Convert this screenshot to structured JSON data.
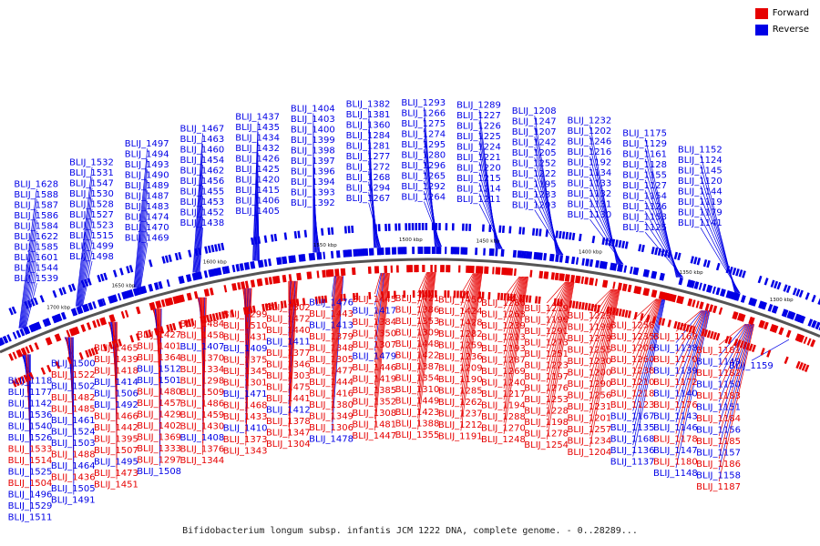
{
  "legend": {
    "forward_label": "Forward",
    "reverse_label": "Reverse",
    "forward_color": "#e60000",
    "reverse_color": "#0000e6"
  },
  "caption": "Bifidobacterium longum subsp. infantis JCM 1222 DNA, complete genome. - 0..28289...",
  "ticks": [
    "1700 kbp",
    "1650 kbp",
    "1600 kbp",
    "1550 kbp",
    "1500 kbp",
    "1450 kbp",
    "1400 kbp",
    "1350 kbp",
    "1300 kbp"
  ],
  "labels": [
    {
      "t": "BLIJ_1628",
      "s": "r"
    },
    {
      "t": "BLIJ_1588",
      "s": "r"
    },
    {
      "t": "BLIJ_1587",
      "s": "r"
    },
    {
      "t": "BLIJ_1586",
      "s": "r"
    },
    {
      "t": "BLIJ_1584",
      "s": "r"
    },
    {
      "t": "BLIJ_1622",
      "s": "r"
    },
    {
      "t": "BLIJ_1585",
      "s": "r"
    },
    {
      "t": "BLIJ_1601",
      "s": "r"
    },
    {
      "t": "BLIJ_1544",
      "s": "r"
    },
    {
      "t": "BLIJ_1539",
      "s": "r"
    },
    {
      "t": "BLIJ_1532",
      "s": "r"
    },
    {
      "t": "BLIJ_1531",
      "s": "r"
    },
    {
      "t": "BLIJ_1547",
      "s": "r"
    },
    {
      "t": "BLIJ_1530",
      "s": "r"
    },
    {
      "t": "BLIJ_1528",
      "s": "r"
    },
    {
      "t": "BLIJ_1527",
      "s": "r"
    },
    {
      "t": "BLIJ_1523",
      "s": "r"
    },
    {
      "t": "BLIJ_1515",
      "s": "r"
    },
    {
      "t": "BLIJ_1499",
      "s": "r"
    },
    {
      "t": "BLIJ_1498",
      "s": "r"
    },
    {
      "t": "BLIJ_1497",
      "s": "r"
    },
    {
      "t": "BLIJ_1494",
      "s": "r"
    },
    {
      "t": "BLIJ_1493",
      "s": "r"
    },
    {
      "t": "BLIJ_1490",
      "s": "r"
    },
    {
      "t": "BLIJ_1489",
      "s": "r"
    },
    {
      "t": "BLIJ_1487",
      "s": "r"
    },
    {
      "t": "BLIJ_1483",
      "s": "r"
    },
    {
      "t": "BLIJ_1474",
      "s": "r"
    },
    {
      "t": "BLIJ_1470",
      "s": "r"
    },
    {
      "t": "BLIJ_1469",
      "s": "r"
    },
    {
      "t": "BLIJ_1467",
      "s": "r"
    },
    {
      "t": "BLIJ_1463",
      "s": "r"
    },
    {
      "t": "BLIJ_1460",
      "s": "r"
    },
    {
      "t": "BLIJ_1454",
      "s": "r"
    },
    {
      "t": "BLIJ_1462",
      "s": "r"
    },
    {
      "t": "BLIJ_1456",
      "s": "r"
    },
    {
      "t": "BLIJ_1455",
      "s": "r"
    },
    {
      "t": "BLIJ_1453",
      "s": "r"
    },
    {
      "t": "BLIJ_1452",
      "s": "r"
    },
    {
      "t": "BLIJ_1438",
      "s": "r"
    },
    {
      "t": "BLIJ_1437",
      "s": "r"
    },
    {
      "t": "BLIJ_1435",
      "s": "r"
    },
    {
      "t": "BLIJ_1434",
      "s": "r"
    },
    {
      "t": "BLIJ_1432",
      "s": "r"
    },
    {
      "t": "BLIJ_1426",
      "s": "r"
    },
    {
      "t": "BLIJ_1425",
      "s": "r"
    },
    {
      "t": "BLIJ_1420",
      "s": "r"
    },
    {
      "t": "BLIJ_1415",
      "s": "r"
    },
    {
      "t": "BLIJ_1406",
      "s": "r"
    },
    {
      "t": "BLIJ_1405",
      "s": "r"
    },
    {
      "t": "BLIJ_1404",
      "s": "r"
    },
    {
      "t": "BLIJ_1403",
      "s": "r"
    },
    {
      "t": "BLIJ_1400",
      "s": "r"
    },
    {
      "t": "BLIJ_1399",
      "s": "r"
    },
    {
      "t": "BLIJ_1398",
      "s": "r"
    },
    {
      "t": "BLIJ_1397",
      "s": "r"
    },
    {
      "t": "BLIJ_1396",
      "s": "r"
    },
    {
      "t": "BLIJ_1394",
      "s": "r"
    },
    {
      "t": "BLIJ_1393",
      "s": "r"
    },
    {
      "t": "BLIJ_1392",
      "s": "r"
    },
    {
      "t": "BLIJ_1382",
      "s": "r"
    },
    {
      "t": "BLIJ_1381",
      "s": "r"
    },
    {
      "t": "BLIJ_1360",
      "s": "r"
    },
    {
      "t": "BLIJ_1284",
      "s": "r"
    },
    {
      "t": "BLIJ_1281",
      "s": "r"
    },
    {
      "t": "BLIJ_1277",
      "s": "r"
    },
    {
      "t": "BLIJ_1272",
      "s": "r"
    },
    {
      "t": "BLIJ_1268",
      "s": "r"
    },
    {
      "t": "BLIJ_1294",
      "s": "r"
    },
    {
      "t": "BLIJ_1267",
      "s": "r"
    },
    {
      "t": "BLIJ_1293",
      "s": "r"
    },
    {
      "t": "BLIJ_1266",
      "s": "r"
    },
    {
      "t": "BLIJ_1275",
      "s": "r"
    },
    {
      "t": "BLIJ_1274",
      "s": "r"
    },
    {
      "t": "BLIJ_1295",
      "s": "r"
    },
    {
      "t": "BLIJ_1280",
      "s": "r"
    },
    {
      "t": "BLIJ_1296",
      "s": "r"
    },
    {
      "t": "BLIJ_1265",
      "s": "r"
    },
    {
      "t": "BLIJ_1292",
      "s": "r"
    },
    {
      "t": "BLIJ_1264",
      "s": "r"
    },
    {
      "t": "BLIJ_1289",
      "s": "r"
    },
    {
      "t": "BLIJ_1227",
      "s": "r"
    },
    {
      "t": "BLIJ_1226",
      "s": "r"
    },
    {
      "t": "BLIJ_1225",
      "s": "r"
    },
    {
      "t": "BLIJ_1224",
      "s": "r"
    },
    {
      "t": "BLIJ_1221",
      "s": "r"
    },
    {
      "t": "BLIJ_1220",
      "s": "r"
    },
    {
      "t": "BLIJ_1215",
      "s": "r"
    },
    {
      "t": "BLIJ_1214",
      "s": "r"
    },
    {
      "t": "BLIJ_1211",
      "s": "r"
    },
    {
      "t": "BLIJ_1208",
      "s": "r"
    },
    {
      "t": "BLIJ_1247",
      "s": "r"
    },
    {
      "t": "BLIJ_1207",
      "s": "r"
    },
    {
      "t": "BLIJ_1242",
      "s": "r"
    },
    {
      "t": "BLIJ_1205",
      "s": "r"
    },
    {
      "t": "BLIJ_1252",
      "s": "r"
    },
    {
      "t": "BLIJ_1222",
      "s": "r"
    },
    {
      "t": "BLIJ_1195",
      "s": "r"
    },
    {
      "t": "BLIJ_1233",
      "s": "r"
    },
    {
      "t": "BLIJ_1203",
      "s": "r"
    },
    {
      "t": "BLIJ_1232",
      "s": "r"
    },
    {
      "t": "BLIJ_1202",
      "s": "r"
    },
    {
      "t": "BLIJ_1246",
      "s": "r"
    },
    {
      "t": "BLIJ_1216",
      "s": "r"
    },
    {
      "t": "BLIJ_1192",
      "s": "r"
    },
    {
      "t": "BLIJ_1134",
      "s": "r"
    },
    {
      "t": "BLIJ_1133",
      "s": "r"
    },
    {
      "t": "BLIJ_1132",
      "s": "r"
    },
    {
      "t": "BLIJ_1131",
      "s": "r"
    },
    {
      "t": "BLIJ_1130",
      "s": "r"
    },
    {
      "t": "BLIJ_1175",
      "s": "r"
    },
    {
      "t": "BLIJ_1129",
      "s": "r"
    },
    {
      "t": "BLIJ_1161",
      "s": "r"
    },
    {
      "t": "BLIJ_1128",
      "s": "r"
    },
    {
      "t": "BLIJ_1155",
      "s": "r"
    },
    {
      "t": "BLIJ_1127",
      "s": "r"
    },
    {
      "t": "BLIJ_1154",
      "s": "r"
    },
    {
      "t": "BLIJ_1126",
      "s": "r"
    },
    {
      "t": "BLIJ_1153",
      "s": "r"
    },
    {
      "t": "BLIJ_1125",
      "s": "r"
    },
    {
      "t": "BLIJ_1152",
      "s": "r"
    },
    {
      "t": "BLIJ_1124",
      "s": "r"
    },
    {
      "t": "BLIJ_1145",
      "s": "r"
    },
    {
      "t": "BLIJ_1120",
      "s": "r"
    },
    {
      "t": "BLIJ_1144",
      "s": "r"
    },
    {
      "t": "BLIJ_1119",
      "s": "r"
    },
    {
      "t": "BLIJ_1179",
      "s": "r"
    },
    {
      "t": "BLIJ_1141",
      "s": "r"
    },
    {
      "t": "BLIJ_1118",
      "s": "r"
    },
    {
      "t": "BLIJ_1177",
      "s": "r"
    },
    {
      "t": "BLIJ_1142",
      "s": "r"
    },
    {
      "t": "BLIJ_1536",
      "s": "r"
    },
    {
      "t": "BLIJ_1540",
      "s": "r"
    },
    {
      "t": "BLIJ_1526",
      "s": "r"
    },
    {
      "t": "BLIJ_1533",
      "s": "f"
    },
    {
      "t": "BLIJ_1514",
      "s": "f"
    },
    {
      "t": "BLIJ_1525",
      "s": "r"
    },
    {
      "t": "BLIJ_1504",
      "s": "f"
    },
    {
      "t": "BLIJ_1496",
      "s": "r"
    },
    {
      "t": "BLIJ_1529",
      "s": "r"
    },
    {
      "t": "BLIJ_1511",
      "s": "r"
    },
    {
      "t": "BLIJ_1500",
      "s": "r"
    },
    {
      "t": "BLIJ_1522",
      "s": "f"
    },
    {
      "t": "BLIJ_1502",
      "s": "r"
    },
    {
      "t": "BLIJ_1482",
      "s": "f"
    },
    {
      "t": "BLIJ_1485",
      "s": "f"
    },
    {
      "t": "BLIJ_1461",
      "s": "r"
    },
    {
      "t": "BLIJ_1524",
      "s": "r"
    },
    {
      "t": "BLIJ_1503",
      "s": "r"
    },
    {
      "t": "BLIJ_1488",
      "s": "f"
    },
    {
      "t": "BLIJ_1464",
      "s": "r"
    },
    {
      "t": "BLIJ_1436",
      "s": "f"
    },
    {
      "t": "BLIJ_1505",
      "s": "r"
    },
    {
      "t": "BLIJ_1491",
      "s": "r"
    },
    {
      "t": "BLIJ_1465",
      "s": "f"
    },
    {
      "t": "BLIJ_1439",
      "s": "f"
    },
    {
      "t": "BLIJ_1418",
      "s": "f"
    },
    {
      "t": "BLIJ_1414",
      "s": "r"
    },
    {
      "t": "BLIJ_1506",
      "s": "r"
    },
    {
      "t": "BLIJ_1492",
      "s": "r"
    },
    {
      "t": "BLIJ_1466",
      "s": "f"
    },
    {
      "t": "BLIJ_1442",
      "s": "f"
    },
    {
      "t": "BLIJ_1395",
      "s": "f"
    },
    {
      "t": "BLIJ_1507",
      "s": "f"
    },
    {
      "t": "BLIJ_1495",
      "s": "r"
    },
    {
      "t": "BLIJ_1473",
      "s": "f"
    },
    {
      "t": "BLIJ_1451",
      "s": "f"
    },
    {
      "t": "BLIJ_1427",
      "s": "f"
    },
    {
      "t": "BLIJ_1401",
      "s": "f"
    },
    {
      "t": "BLIJ_1364",
      "s": "f"
    },
    {
      "t": "BLIJ_1512",
      "s": "r"
    },
    {
      "t": "BLIJ_1501",
      "s": "r"
    },
    {
      "t": "BLIJ_1480",
      "s": "f"
    },
    {
      "t": "BLIJ_1457",
      "s": "f"
    },
    {
      "t": "BLIJ_1429",
      "s": "f"
    },
    {
      "t": "BLIJ_1402",
      "s": "f"
    },
    {
      "t": "BLIJ_1369",
      "s": "f"
    },
    {
      "t": "BLIJ_1333",
      "s": "f"
    },
    {
      "t": "BLIJ_1297",
      "s": "f"
    },
    {
      "t": "BLIJ_1508",
      "s": "r"
    },
    {
      "t": "BLIJ_1484",
      "s": "f"
    },
    {
      "t": "BLIJ_1458",
      "s": "f"
    },
    {
      "t": "BLIJ_1407",
      "s": "r"
    },
    {
      "t": "BLIJ_1370",
      "s": "f"
    },
    {
      "t": "BLIJ_1334",
      "s": "f"
    },
    {
      "t": "BLIJ_1298",
      "s": "f"
    },
    {
      "t": "BLIJ_1509",
      "s": "f"
    },
    {
      "t": "BLIJ_1486",
      "s": "f"
    },
    {
      "t": "BLIJ_1459",
      "s": "f"
    },
    {
      "t": "BLIJ_1430",
      "s": "f"
    },
    {
      "t": "BLIJ_1408",
      "s": "r"
    },
    {
      "t": "BLIJ_1376",
      "s": "f"
    },
    {
      "t": "BLIJ_1344",
      "s": "f"
    },
    {
      "t": "BLIJ_1299",
      "s": "f"
    },
    {
      "t": "BLIJ_1510",
      "s": "f"
    },
    {
      "t": "BLIJ_1431",
      "s": "f"
    },
    {
      "t": "BLIJ_1409",
      "s": "r"
    },
    {
      "t": "BLIJ_1375",
      "s": "f"
    },
    {
      "t": "BLIJ_1345",
      "s": "f"
    },
    {
      "t": "BLIJ_1301",
      "s": "f"
    },
    {
      "t": "BLIJ_1471",
      "s": "r"
    },
    {
      "t": "BLIJ_1468",
      "s": "f"
    },
    {
      "t": "BLIJ_1433",
      "s": "f"
    },
    {
      "t": "BLIJ_1410",
      "s": "r"
    },
    {
      "t": "BLIJ_1373",
      "s": "f"
    },
    {
      "t": "BLIJ_1343",
      "s": "f"
    },
    {
      "t": "BLIJ_1302",
      "s": "f"
    },
    {
      "t": "BLIJ_1472",
      "s": "f"
    },
    {
      "t": "BLIJ_1440",
      "s": "f"
    },
    {
      "t": "BLIJ_1411",
      "s": "r"
    },
    {
      "t": "BLIJ_1377",
      "s": "f"
    },
    {
      "t": "BLIJ_1346",
      "s": "f"
    },
    {
      "t": "BLIJ_1303",
      "s": "f"
    },
    {
      "t": "BLIJ_1475",
      "s": "f"
    },
    {
      "t": "BLIJ_1441",
      "s": "f"
    },
    {
      "t": "BLIJ_1412",
      "s": "r"
    },
    {
      "t": "BLIJ_1378",
      "s": "f"
    },
    {
      "t": "BLIJ_1347",
      "s": "f"
    },
    {
      "t": "BLIJ_1304",
      "s": "f"
    },
    {
      "t": "BLIJ_1476",
      "s": "r"
    },
    {
      "t": "BLIJ_1443",
      "s": "f"
    },
    {
      "t": "BLIJ_1413",
      "s": "r"
    },
    {
      "t": "BLIJ_1379",
      "s": "f"
    },
    {
      "t": "BLIJ_1348",
      "s": "f"
    },
    {
      "t": "BLIJ_1305",
      "s": "f"
    },
    {
      "t": "BLIJ_1477",
      "s": "f"
    },
    {
      "t": "BLIJ_1444",
      "s": "f"
    },
    {
      "t": "BLIJ_1416",
      "s": "f"
    },
    {
      "t": "BLIJ_1380",
      "s": "f"
    },
    {
      "t": "BLIJ_1349",
      "s": "f"
    },
    {
      "t": "BLIJ_1306",
      "s": "f"
    },
    {
      "t": "BLIJ_1478",
      "s": "r"
    },
    {
      "t": "BLIJ_1445",
      "s": "f"
    },
    {
      "t": "BLIJ_1417",
      "s": "r"
    },
    {
      "t": "BLIJ_1384",
      "s": "f"
    },
    {
      "t": "BLIJ_1350",
      "s": "f"
    },
    {
      "t": "BLIJ_1307",
      "s": "f"
    },
    {
      "t": "BLIJ_1479",
      "s": "r"
    },
    {
      "t": "BLIJ_1446",
      "s": "f"
    },
    {
      "t": "BLIJ_1419",
      "s": "f"
    },
    {
      "t": "BLIJ_1385",
      "s": "f"
    },
    {
      "t": "BLIJ_1352",
      "s": "f"
    },
    {
      "t": "BLIJ_1308",
      "s": "f"
    },
    {
      "t": "BLIJ_1481",
      "s": "f"
    },
    {
      "t": "BLIJ_1447",
      "s": "f"
    },
    {
      "t": "BLIJ_1421",
      "s": "f"
    },
    {
      "t": "BLIJ_1386",
      "s": "f"
    },
    {
      "t": "BLIJ_1353",
      "s": "f"
    },
    {
      "t": "BLIJ_1309",
      "s": "f"
    },
    {
      "t": "BLIJ_1448",
      "s": "f"
    },
    {
      "t": "BLIJ_1422",
      "s": "f"
    },
    {
      "t": "BLIJ_1387",
      "s": "f"
    },
    {
      "t": "BLIJ_1354",
      "s": "f"
    },
    {
      "t": "BLIJ_1310",
      "s": "f"
    },
    {
      "t": "BLIJ_1449",
      "s": "f"
    },
    {
      "t": "BLIJ_1423",
      "s": "f"
    },
    {
      "t": "BLIJ_1388",
      "s": "f"
    },
    {
      "t": "BLIJ_1355",
      "s": "f"
    },
    {
      "t": "BLIJ_1450",
      "s": "f"
    },
    {
      "t": "BLIJ_1424",
      "s": "f"
    },
    {
      "t": "BLIJ_1428",
      "s": "f"
    },
    {
      "t": "BLIJ_1282",
      "s": "f"
    },
    {
      "t": "BLIJ_1259",
      "s": "f"
    },
    {
      "t": "BLIJ_1236",
      "s": "f"
    },
    {
      "t": "BLIJ_1209",
      "s": "f"
    },
    {
      "t": "BLIJ_1190",
      "s": "f"
    },
    {
      "t": "BLIJ_1285",
      "s": "f"
    },
    {
      "t": "BLIJ_1262",
      "s": "f"
    },
    {
      "t": "BLIJ_1237",
      "s": "f"
    },
    {
      "t": "BLIJ_1212",
      "s": "f"
    },
    {
      "t": "BLIJ_1191",
      "s": "f"
    },
    {
      "t": "BLIJ_1286",
      "s": "f"
    },
    {
      "t": "BLIJ_1263",
      "s": "f"
    },
    {
      "t": "BLIJ_1239",
      "s": "f"
    },
    {
      "t": "BLIJ_1213",
      "s": "f"
    },
    {
      "t": "BLIJ_1193",
      "s": "f"
    },
    {
      "t": "BLIJ_1287",
      "s": "f"
    },
    {
      "t": "BLIJ_1269",
      "s": "f"
    },
    {
      "t": "BLIJ_1240",
      "s": "f"
    },
    {
      "t": "BLIJ_1217",
      "s": "f"
    },
    {
      "t": "BLIJ_1194",
      "s": "f"
    },
    {
      "t": "BLIJ_1288",
      "s": "f"
    },
    {
      "t": "BLIJ_1270",
      "s": "f"
    },
    {
      "t": "BLIJ_1248",
      "s": "f"
    },
    {
      "t": "BLIJ_1219",
      "s": "f"
    },
    {
      "t": "BLIJ_1196",
      "s": "f"
    },
    {
      "t": "BLIJ_1291",
      "s": "f"
    },
    {
      "t": "BLIJ_1273",
      "s": "f"
    },
    {
      "t": "BLIJ_1251",
      "s": "f"
    },
    {
      "t": "BLIJ_1223",
      "s": "f"
    },
    {
      "t": "BLIJ_1197",
      "s": "f"
    },
    {
      "t": "BLIJ_1276",
      "s": "f"
    },
    {
      "t": "BLIJ_1253",
      "s": "f"
    },
    {
      "t": "BLIJ_1228",
      "s": "f"
    },
    {
      "t": "BLIJ_1198",
      "s": "f"
    },
    {
      "t": "BLIJ_1278",
      "s": "f"
    },
    {
      "t": "BLIJ_1254",
      "s": "f"
    },
    {
      "t": "BLIJ_1229",
      "s": "f"
    },
    {
      "t": "BLIJ_1199",
      "s": "f"
    },
    {
      "t": "BLIJ_1279",
      "s": "f"
    },
    {
      "t": "BLIJ_1255",
      "s": "f"
    },
    {
      "t": "BLIJ_1230",
      "s": "f"
    },
    {
      "t": "BLIJ_1200",
      "s": "f"
    },
    {
      "t": "BLIJ_1290",
      "s": "f"
    },
    {
      "t": "BLIJ_1256",
      "s": "f"
    },
    {
      "t": "BLIJ_1231",
      "s": "f"
    },
    {
      "t": "BLIJ_1201",
      "s": "f"
    },
    {
      "t": "BLIJ_1257",
      "s": "f"
    },
    {
      "t": "BLIJ_1234",
      "s": "f"
    },
    {
      "t": "BLIJ_1204",
      "s": "f"
    },
    {
      "t": "BLIJ_1258",
      "s": "f"
    },
    {
      "t": "BLIJ_1235",
      "s": "f"
    },
    {
      "t": "BLIJ_1206",
      "s": "f"
    },
    {
      "t": "BLIJ_1260",
      "s": "f"
    },
    {
      "t": "BLIJ_1238",
      "s": "f"
    },
    {
      "t": "BLIJ_1210",
      "s": "f"
    },
    {
      "t": "BLIJ_1218",
      "s": "f"
    },
    {
      "t": "BLIJ_1123",
      "s": "f"
    },
    {
      "t": "BLIJ_1167",
      "s": "r"
    },
    {
      "t": "BLIJ_1135",
      "s": "r"
    },
    {
      "t": "BLIJ_1168",
      "s": "r"
    },
    {
      "t": "BLIJ_1136",
      "s": "r"
    },
    {
      "t": "BLIJ_1137",
      "s": "r"
    },
    {
      "t": "BLIJ_1169",
      "s": "f"
    },
    {
      "t": "BLIJ_1138",
      "s": "r"
    },
    {
      "t": "BLIJ_1170",
      "s": "f"
    },
    {
      "t": "BLIJ_1139",
      "s": "r"
    },
    {
      "t": "BLIJ_1172",
      "s": "f"
    },
    {
      "t": "BLIJ_1140",
      "s": "r"
    },
    {
      "t": "BLIJ_1176",
      "s": "f"
    },
    {
      "t": "BLIJ_1143",
      "s": "r"
    },
    {
      "t": "BLIJ_1146",
      "s": "r"
    },
    {
      "t": "BLIJ_1178",
      "s": "f"
    },
    {
      "t": "BLIJ_1147",
      "s": "r"
    },
    {
      "t": "BLIJ_1180",
      "s": "f"
    },
    {
      "t": "BLIJ_1148",
      "s": "r"
    },
    {
      "t": "BLIJ_1181",
      "s": "f"
    },
    {
      "t": "BLIJ_1149",
      "s": "r"
    },
    {
      "t": "BLIJ_1182",
      "s": "f"
    },
    {
      "t": "BLIJ_1150",
      "s": "r"
    },
    {
      "t": "BLIJ_1183",
      "s": "f"
    },
    {
      "t": "BLIJ_1151",
      "s": "r"
    },
    {
      "t": "BLIJ_1184",
      "s": "f"
    },
    {
      "t": "BLIJ_1156",
      "s": "r"
    },
    {
      "t": "BLIJ_1185",
      "s": "f"
    },
    {
      "t": "BLIJ_1157",
      "s": "r"
    },
    {
      "t": "BLIJ_1186",
      "s": "f"
    },
    {
      "t": "BLIJ_1158",
      "s": "r"
    },
    {
      "t": "BLIJ_1187",
      "s": "f"
    },
    {
      "t": "BLIJ_1159",
      "s": "r"
    }
  ]
}
